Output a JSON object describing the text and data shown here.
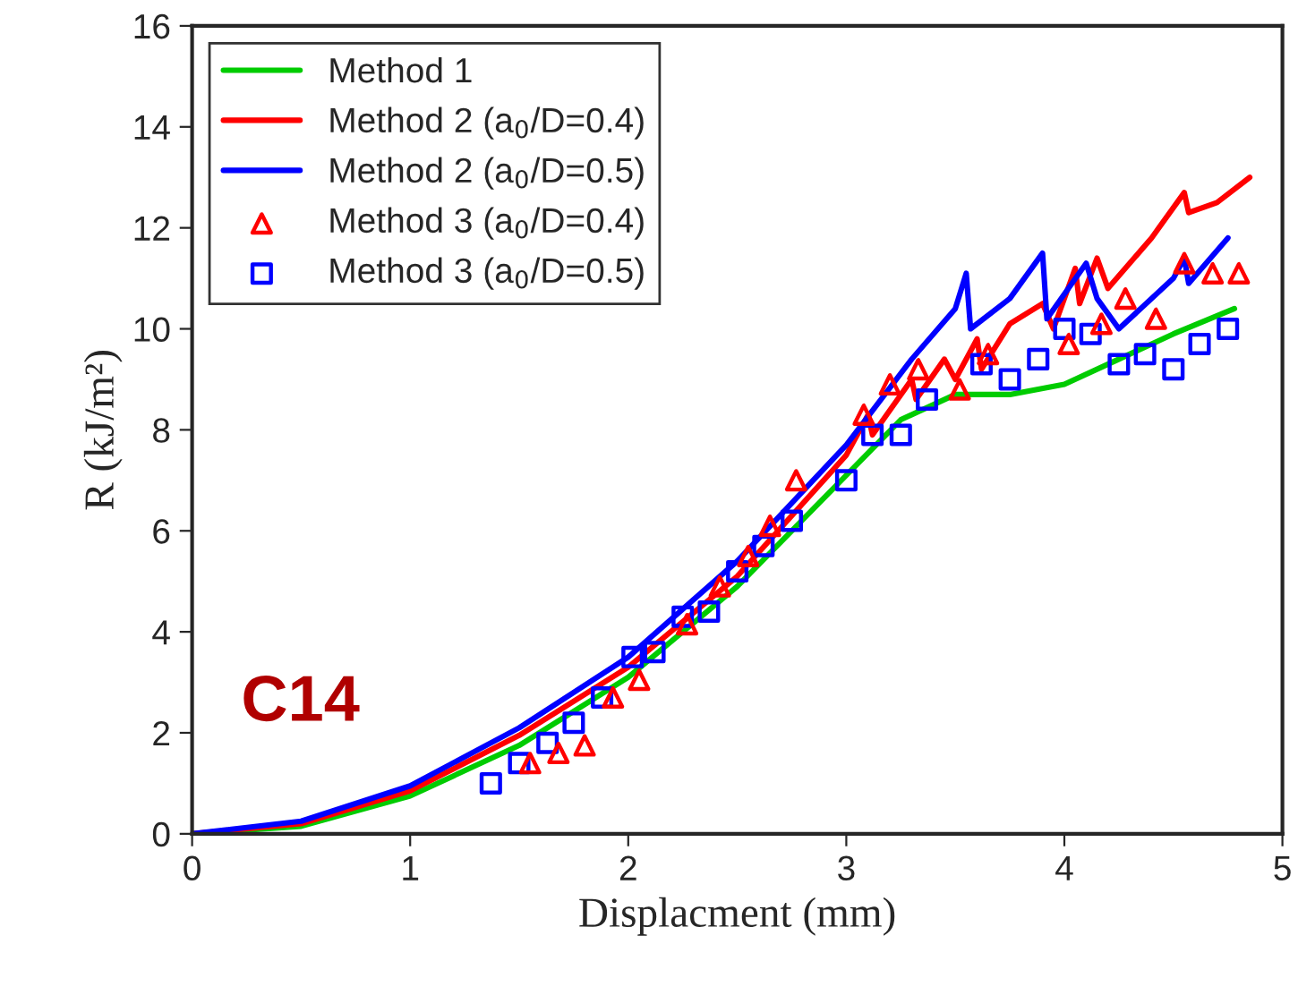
{
  "chart_data": {
    "type": "line",
    "xlabel": "Displacment (mm)",
    "ylabel": "R (kJ/m²)",
    "xlim": [
      0,
      5
    ],
    "ylim": [
      0,
      16
    ],
    "xticks": [
      0,
      1,
      2,
      3,
      4,
      5
    ],
    "yticks": [
      0,
      2,
      4,
      6,
      8,
      10,
      12,
      14,
      16
    ],
    "grid": false,
    "legend": "top left",
    "annotations": [
      "C14"
    ],
    "series": [
      {
        "name": "Method 1",
        "color": "#00cc00",
        "x": [
          0,
          0.5,
          1,
          1.5,
          2,
          2.5,
          3,
          3.25,
          3.5,
          3.75,
          4,
          4.25,
          4.5,
          4.78
        ],
        "values": [
          0,
          0.15,
          0.75,
          1.75,
          3.1,
          4.9,
          7.1,
          8.2,
          8.7,
          8.7,
          8.9,
          9.4,
          9.9,
          10.4
        ]
      },
      {
        "name": "Method 2 (a$_{0}$/D=0.4)",
        "color": "#ff0000",
        "x": [
          0,
          0.5,
          1,
          1.5,
          2,
          2.5,
          3,
          3.1,
          3.12,
          3.3,
          3.32,
          3.45,
          3.5,
          3.6,
          3.62,
          3.75,
          3.9,
          3.95,
          4.05,
          4.07,
          4.15,
          4.2,
          4.4,
          4.55,
          4.57,
          4.7,
          4.85
        ],
        "values": [
          0,
          0.2,
          0.85,
          1.95,
          3.3,
          5.1,
          7.5,
          8.3,
          7.9,
          9.0,
          8.6,
          9.4,
          9.0,
          9.8,
          9.2,
          10.1,
          10.5,
          10.0,
          11.2,
          10.5,
          11.4,
          10.8,
          11.8,
          12.7,
          12.3,
          12.5,
          13.0
        ]
      },
      {
        "name": "Method 2 (a$_{0}$/D=0.5)",
        "color": "#0000ff",
        "x": [
          0,
          0.5,
          1,
          1.5,
          2,
          2.5,
          3,
          3.3,
          3.5,
          3.55,
          3.57,
          3.75,
          3.9,
          3.92,
          4.1,
          4.15,
          4.25,
          4.5,
          4.55,
          4.57,
          4.75
        ],
        "values": [
          0,
          0.25,
          0.95,
          2.1,
          3.5,
          5.4,
          7.7,
          9.4,
          10.4,
          11.1,
          10.0,
          10.6,
          11.5,
          10.2,
          11.3,
          10.6,
          10.0,
          11.0,
          11.4,
          10.9,
          11.8
        ]
      },
      {
        "name": "Method 3 (a$_{0}$/D=0.4)",
        "color": "#ff0000",
        "type": "scatter",
        "marker": "triangle",
        "x": [
          1.55,
          1.68,
          1.8,
          1.93,
          2.05,
          2.27,
          2.42,
          2.55,
          2.65,
          2.77,
          3.08,
          3.2,
          3.33,
          3.52,
          3.65,
          4.02,
          4.17,
          4.28,
          4.42,
          4.55,
          4.68,
          4.8
        ],
        "values": [
          1.4,
          1.6,
          1.75,
          2.7,
          3.05,
          4.15,
          4.9,
          5.5,
          6.1,
          7.0,
          8.3,
          8.9,
          9.2,
          8.8,
          9.5,
          9.7,
          10.1,
          10.6,
          10.2,
          11.3,
          11.1,
          11.1
        ]
      },
      {
        "name": "Method 3 (a$_{0}$/D=0.5)",
        "color": "#0000ff",
        "type": "scatter",
        "marker": "square",
        "x": [
          1.37,
          1.5,
          1.63,
          1.75,
          1.88,
          2.02,
          2.12,
          2.25,
          2.37,
          2.5,
          2.62,
          2.75,
          3.0,
          3.12,
          3.25,
          3.37,
          3.62,
          3.75,
          3.88,
          4.0,
          4.12,
          4.25,
          4.37,
          4.5,
          4.62,
          4.75
        ],
        "values": [
          1.0,
          1.4,
          1.8,
          2.2,
          2.7,
          3.5,
          3.6,
          4.3,
          4.4,
          5.2,
          5.7,
          6.2,
          7.0,
          7.9,
          7.9,
          8.6,
          9.3,
          9.0,
          9.4,
          10.0,
          9.9,
          9.3,
          9.5,
          9.2,
          9.7,
          10.0
        ]
      }
    ]
  }
}
